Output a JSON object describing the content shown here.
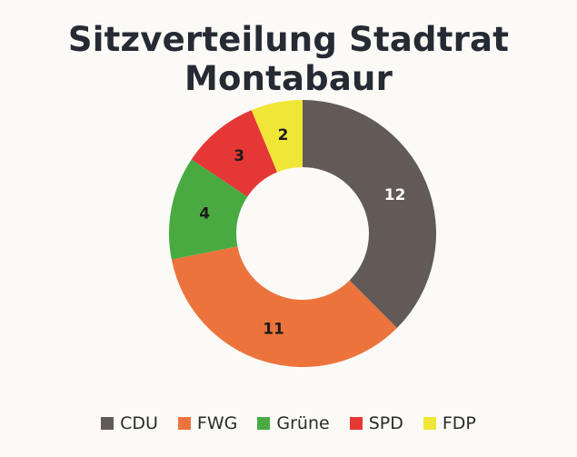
{
  "chart_data": {
    "type": "pie",
    "title": "Sitzverteilung Stadtrat Montabaur",
    "categories": [
      "CDU",
      "FWG",
      "Grüne",
      "SPD",
      "FDP"
    ],
    "values": [
      12,
      11,
      4,
      3,
      2
    ],
    "colors": [
      "#625a57",
      "#ec743c",
      "#4aaa42",
      "#e53735",
      "#f0e637"
    ],
    "label_colors": [
      "#ffffff",
      "#1c1c1c",
      "#1c1c1c",
      "#1c1c1c",
      "#1c1c1c"
    ],
    "donut": true,
    "legend_position": "bottom"
  }
}
